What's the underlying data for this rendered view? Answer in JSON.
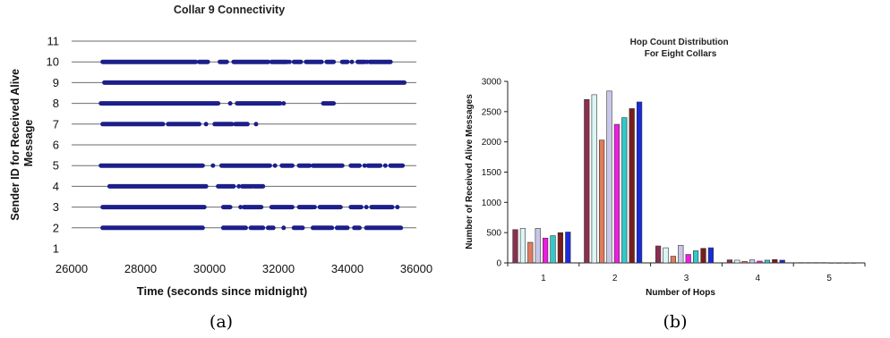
{
  "chart_data": [
    {
      "type": "scatter",
      "title": "Collar 9 Connectivity",
      "xlabel": "Time (seconds since midnight)",
      "ylabel": "Sender ID for Received Alive Message",
      "xlim": [
        26000,
        36000
      ],
      "ylim": [
        1,
        11
      ],
      "xticks": [
        26000,
        28000,
        30000,
        32000,
        34000,
        36000
      ],
      "yticks": [
        1,
        2,
        3,
        4,
        5,
        6,
        7,
        8,
        9,
        10,
        11
      ],
      "grid": "horizontal",
      "marker_color": "#1c1f8a",
      "caption": "(a)",
      "rows": [
        {
          "y": 10,
          "segments": [
            [
              26900,
              29600
            ],
            [
              29700,
              29950
            ],
            [
              30300,
              30500
            ],
            [
              30700,
              31700
            ],
            [
              31800,
              32250
            ],
            [
              32450,
              32650
            ],
            [
              32800,
              33250
            ],
            [
              33400,
              33600
            ],
            [
              33850,
              34000
            ],
            [
              34300,
              34500
            ],
            [
              34650,
              35250
            ]
          ],
          "points": [
            32320,
            34130,
            34570
          ]
        },
        {
          "y": 9,
          "segments": [
            [
              26950,
              35650
            ]
          ],
          "points": []
        },
        {
          "y": 8,
          "segments": [
            [
              26850,
              30250
            ],
            [
              30800,
              32050
            ],
            [
              33300,
              33600
            ]
          ],
          "points": [
            30600,
            32150
          ]
        },
        {
          "y": 7,
          "segments": [
            [
              26900,
              28650
            ],
            [
              28800,
              29700
            ],
            [
              30150,
              30650
            ],
            [
              30750,
              31100
            ]
          ],
          "points": [
            29900,
            31350
          ]
        },
        {
          "y": 5,
          "segments": [
            [
              26850,
              29800
            ],
            [
              30350,
              31750
            ],
            [
              32100,
              32400
            ],
            [
              32600,
              32900
            ],
            [
              33000,
              33850
            ],
            [
              34100,
              34350
            ],
            [
              34600,
              34950
            ],
            [
              35250,
              35600
            ]
          ],
          "points": [
            30100,
            31900,
            34500,
            35100
          ]
        },
        {
          "y": 4,
          "segments": [
            [
              27100,
              29900
            ],
            [
              30250,
              30700
            ],
            [
              30950,
              31250
            ],
            [
              31300,
              31550
            ]
          ],
          "points": [
            30850
          ]
        },
        {
          "y": 3,
          "segments": [
            [
              26900,
              29850
            ],
            [
              30400,
              30600
            ],
            [
              31000,
              31500
            ],
            [
              31800,
              32400
            ],
            [
              32600,
              33000
            ],
            [
              33200,
              33800
            ],
            [
              34100,
              34400
            ],
            [
              34700,
              35300
            ]
          ],
          "points": [
            30900,
            33050,
            34550,
            35450
          ]
        },
        {
          "y": 2,
          "segments": [
            [
              26900,
              29800
            ],
            [
              30400,
              31050
            ],
            [
              31200,
              31550
            ],
            [
              31700,
              31850
            ],
            [
              32450,
              32700
            ],
            [
              33000,
              33500
            ],
            [
              33700,
              34000
            ],
            [
              34200,
              34350
            ],
            [
              34550,
              35550
            ]
          ],
          "points": [
            32150,
            33550
          ]
        }
      ]
    },
    {
      "type": "bar",
      "title": "Hop Count Distribution\nFor Eight Collars",
      "xlabel": "Number of Hops",
      "ylabel": "Number of Received Alive Messages",
      "categories": [
        "1",
        "2",
        "3",
        "4",
        "5"
      ],
      "ylim": [
        0,
        3000
      ],
      "yticks": [
        0,
        500,
        1000,
        1500,
        2000,
        2500,
        3000
      ],
      "grid": "none",
      "legend": "none",
      "caption": "(b)",
      "series": [
        {
          "color": "#8b2f4f",
          "values": [
            550,
            2700,
            280,
            50,
            5
          ]
        },
        {
          "color": "#dcf5f5",
          "values": [
            570,
            2780,
            250,
            45,
            5
          ]
        },
        {
          "color": "#e07a5f",
          "values": [
            340,
            2030,
            110,
            25,
            5
          ]
        },
        {
          "color": "#c9c6ea",
          "values": [
            570,
            2840,
            290,
            50,
            5
          ]
        },
        {
          "color": "#ee1ce3",
          "values": [
            410,
            2290,
            140,
            30,
            3
          ]
        },
        {
          "color": "#31c9c9",
          "values": [
            450,
            2400,
            200,
            45,
            3
          ]
        },
        {
          "color": "#7a1c1c",
          "values": [
            500,
            2550,
            240,
            55,
            3
          ]
        },
        {
          "color": "#1a2bd8",
          "values": [
            510,
            2660,
            250,
            45,
            3
          ]
        }
      ]
    }
  ]
}
